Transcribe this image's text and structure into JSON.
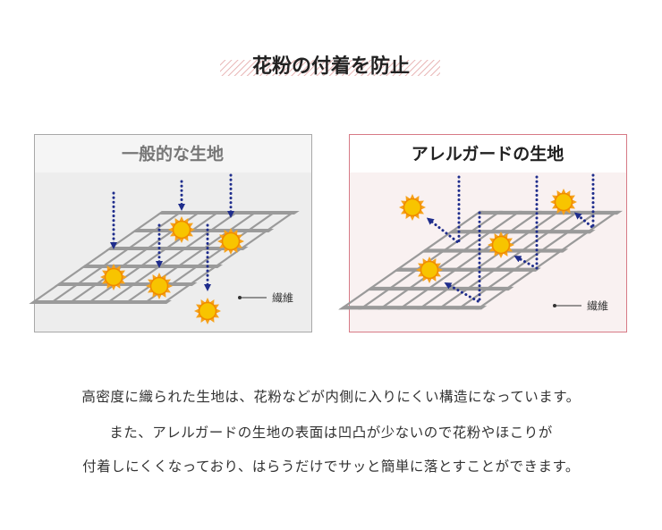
{
  "title": "花粉の付着を防止",
  "panels": [
    {
      "title": "一般的な生地",
      "label": "繊維"
    },
    {
      "title": "アレルガードの生地",
      "label": "繊維"
    }
  ],
  "description": [
    "高密度に織られた生地は、花粉などが内側に入りにくい構造になっています。",
    "また、アレルガードの生地の表面は凹凸が少ないので花粉やほこりが",
    "付着しにくくなっており、はらうだけでサッと簡単に落とすことができます。"
  ]
}
